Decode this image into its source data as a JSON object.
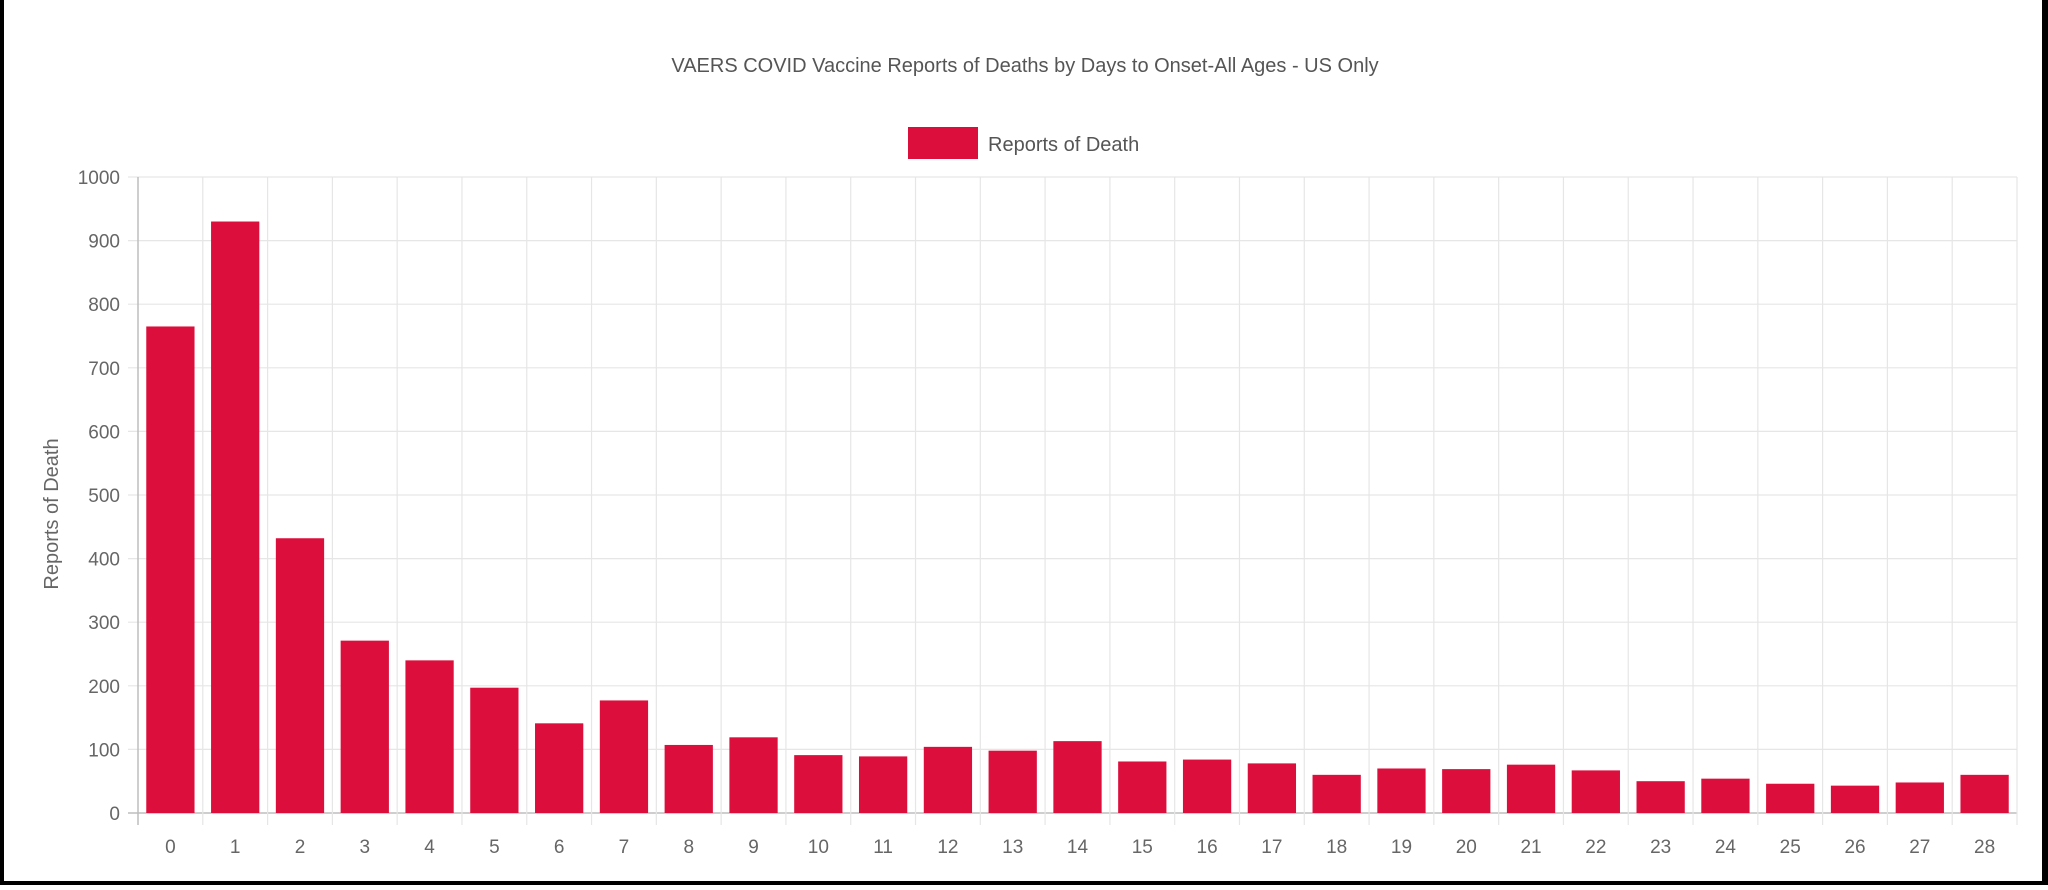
{
  "chart_data": {
    "type": "bar",
    "title": "VAERS COVID Vaccine Reports of Deaths by Days to Onset-All Ages - US Only",
    "xlabel": "",
    "ylabel": "Reports of Death",
    "ylim": [
      0,
      1000
    ],
    "yticks": [
      0,
      100,
      200,
      300,
      400,
      500,
      600,
      700,
      800,
      900,
      1000
    ],
    "grid": true,
    "legend_position": "top-center",
    "categories": [
      "0",
      "1",
      "2",
      "3",
      "4",
      "5",
      "6",
      "7",
      "8",
      "9",
      "10",
      "11",
      "12",
      "13",
      "14",
      "15",
      "16",
      "17",
      "18",
      "19",
      "20",
      "21",
      "22",
      "23",
      "24",
      "25",
      "26",
      "27",
      "28"
    ],
    "series": [
      {
        "name": "Reports of Death",
        "color": "#dc0f3c",
        "values": [
          765,
          930,
          432,
          271,
          240,
          197,
          141,
          177,
          107,
          119,
          91,
          89,
          104,
          98,
          113,
          81,
          84,
          78,
          60,
          70,
          69,
          76,
          67,
          50,
          54,
          46,
          43,
          48,
          60
        ]
      }
    ]
  }
}
